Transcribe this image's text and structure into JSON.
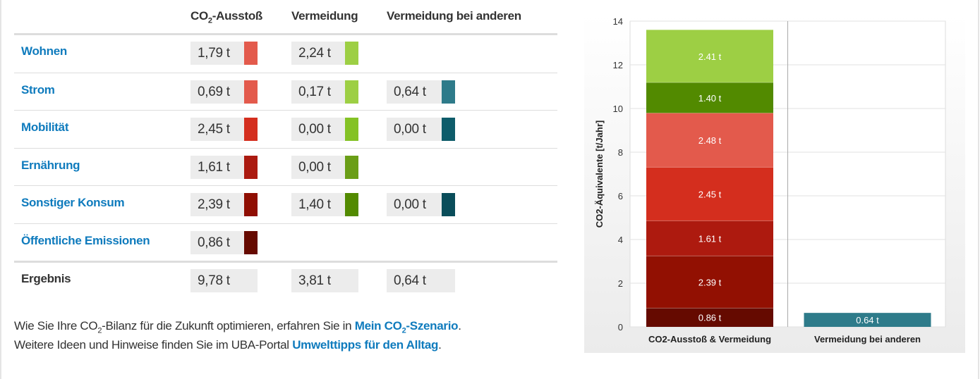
{
  "table": {
    "headers": {
      "co2_prefix": "CO",
      "co2_sub": "2",
      "co2_suffix": "-Ausstoß",
      "vermeidung": "Vermeidung",
      "andere": "Vermeidung bei anderen"
    },
    "rows": [
      {
        "label": "Wohnen",
        "ausstoss": "1,79 t",
        "ausstoss_color": "#e35a4c",
        "vermeidung": "2,24 t",
        "vermeidung_color": "#9dcf44",
        "andere": null,
        "andere_color": null
      },
      {
        "label": "Strom",
        "ausstoss": "0,69 t",
        "ausstoss_color": "#e35a4c",
        "vermeidung": "0,17 t",
        "vermeidung_color": "#9dcf44",
        "andere": "0,64 t",
        "andere_color": "#2e7b8a"
      },
      {
        "label": "Mobilität",
        "ausstoss": "2,45 t",
        "ausstoss_color": "#d42e1e",
        "vermeidung": "0,00 t",
        "vermeidung_color": "#84c225",
        "andere": "0,00 t",
        "andere_color": "#0e5c6a"
      },
      {
        "label": "Ernährung",
        "ausstoss": "1,61 t",
        "ausstoss_color": "#ab1a10",
        "vermeidung": "0,00 t",
        "vermeidung_color": "#6a9e17",
        "andere": null,
        "andere_color": null
      },
      {
        "label": "Sonstiger Konsum",
        "ausstoss": "2,39 t",
        "ausstoss_color": "#8f0e02",
        "vermeidung": "1,40 t",
        "vermeidung_color": "#528a00",
        "andere": "0,00 t",
        "andere_color": "#0a4d5a"
      },
      {
        "label": "Öffentliche Emissionen",
        "ausstoss": "0,86 t",
        "ausstoss_color": "#660a00",
        "vermeidung": null,
        "vermeidung_color": null,
        "andere": null,
        "andere_color": null
      }
    ],
    "result": {
      "label": "Ergebnis",
      "ausstoss": "9,78 t",
      "vermeidung": "3,81 t",
      "andere": "0,64 t"
    }
  },
  "footer": {
    "line1_a": "Wie Sie Ihre CO",
    "line1_sub": "2",
    "line1_b": "-Bilanz für die Zukunft optimieren, erfahren Sie in ",
    "link1_a": "Mein CO",
    "link1_sub": "2",
    "link1_b": "-Szenario",
    "line1_end": ".",
    "line2": "Weitere Ideen und Hinweise finden Sie im UBA-Portal ",
    "link2": "Umwelttipps für den Alltag",
    "line2_end": "."
  },
  "chart_data": {
    "type": "bar",
    "stacked": true,
    "ylabel": "CO2-Äquivalente [t/Jahr]",
    "ylim": [
      0,
      14
    ],
    "yticks": [
      0,
      2,
      4,
      6,
      8,
      10,
      12,
      14
    ],
    "grid": true,
    "categories": [
      "CO2-Ausstoß & Vermeidung",
      "Vermeidung bei anderen"
    ],
    "series": [
      {
        "category": 0,
        "value": 0.86,
        "label": "0.86 t",
        "color": "#650a00"
      },
      {
        "category": 0,
        "value": 2.39,
        "label": "2.39 t",
        "color": "#921002"
      },
      {
        "category": 0,
        "value": 1.61,
        "label": "1.61 t",
        "color": "#ad1a0f"
      },
      {
        "category": 0,
        "value": 2.45,
        "label": "2.45 t",
        "color": "#d42e1e"
      },
      {
        "category": 0,
        "value": 2.48,
        "label": "2.48 t",
        "color": "#e35a4c"
      },
      {
        "category": 0,
        "value": 1.4,
        "label": "1.40 t",
        "color": "#528a00"
      },
      {
        "category": 0,
        "value": 2.41,
        "label": "2.41 t",
        "color": "#9dcf44"
      },
      {
        "category": 1,
        "value": 0.64,
        "label": "0.64 t",
        "color": "#2e7b8a"
      }
    ]
  }
}
